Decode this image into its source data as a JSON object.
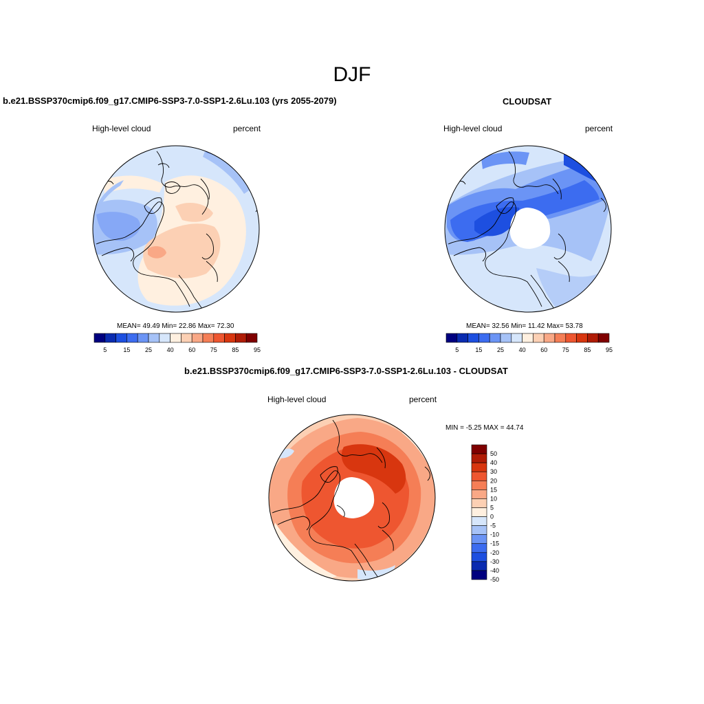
{
  "page_title": "DJF",
  "panels": [
    {
      "title": "b.e21.BSSP370cmip6.f09_g17.CMIP6-SSP3-7.0-SSP1-2.6Lu.103 (yrs 2055-2079)",
      "variable": "High-level cloud",
      "units": "percent",
      "stats": "MEAN=  49.49  Min=  22.86  Max=  72.30",
      "colorbar_labels": [
        "5",
        "15",
        "25",
        "40",
        "60",
        "75",
        "85",
        "95"
      ]
    },
    {
      "title": "CLOUDSAT",
      "variable": "High-level cloud",
      "units": "percent",
      "stats": "MEAN=  32.56  Min=  11.42  Max=  53.78",
      "colorbar_labels": [
        "5",
        "15",
        "25",
        "40",
        "60",
        "75",
        "85",
        "95"
      ]
    },
    {
      "title": "b.e21.BSSP370cmip6.f09_g17.CMIP6-SSP3-7.0-SSP1-2.6Lu.103 - CLOUDSAT",
      "variable": "High-level cloud",
      "units": "percent",
      "stats": "MIN =  -5.25 MAX =  44.74",
      "colorbar_labels": [
        "50",
        "40",
        "30",
        "20",
        "15",
        "10",
        "5",
        "0",
        "-5",
        "-10",
        "-15",
        "-20",
        "-30",
        "-40",
        "-50"
      ]
    }
  ],
  "colors": {
    "abs_scale": [
      "#00007f",
      "#0a2bb0",
      "#1d4fe0",
      "#3c6cf0",
      "#6b94f5",
      "#a6c2f7",
      "#d6e6fb",
      "#fff0e0",
      "#fcd0b4",
      "#f9a886",
      "#f57e56",
      "#ee5630",
      "#d8360f",
      "#b01c06",
      "#7f0000"
    ],
    "diff_scale": [
      "#7f0000",
      "#b01c06",
      "#d8360f",
      "#ee5630",
      "#f57e56",
      "#f9a886",
      "#fcd0b4",
      "#fff0e0",
      "#d6e6fb",
      "#a6c2f7",
      "#6b94f5",
      "#3c6cf0",
      "#1d4fe0",
      "#0a2bb0",
      "#00007f"
    ]
  }
}
